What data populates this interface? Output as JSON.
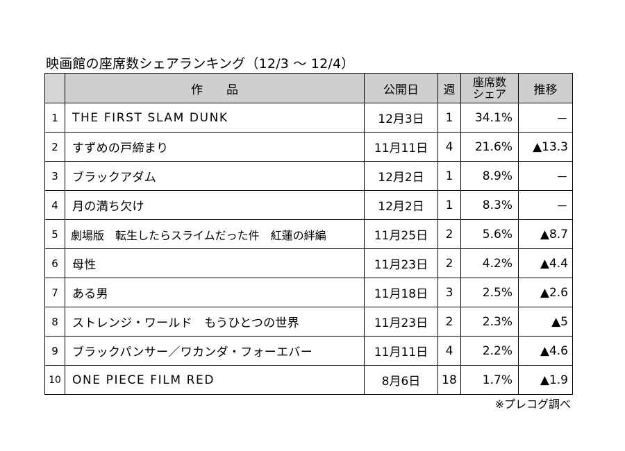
{
  "title": "映画館の座席数シェアランキング（12/3 ～ 12/4）",
  "headers": {
    "title": "作　　品",
    "release": "公開日",
    "week": "週",
    "share_line1": "座席数",
    "share_line2": "シェア",
    "trend": "推移"
  },
  "rows": [
    {
      "rank": "1",
      "title": "THE FIRST SLAM DUNK",
      "release": "12月3日",
      "week": "1",
      "share": "34.1%",
      "trend": "－"
    },
    {
      "rank": "2",
      "title": "すずめの戸締まり",
      "release": "11月11日",
      "week": "4",
      "share": "21.6%",
      "trend": "▲13.3"
    },
    {
      "rank": "3",
      "title": "ブラックアダム",
      "release": "12月2日",
      "week": "1",
      "share": "8.9%",
      "trend": "－"
    },
    {
      "rank": "4",
      "title": "月の満ち欠け",
      "release": "12月2日",
      "week": "1",
      "share": "8.3%",
      "trend": "－"
    },
    {
      "rank": "5",
      "title": "劇場版　転生したらスライムだった件　紅蓮の絆編",
      "release": "11月25日",
      "week": "2",
      "share": "5.6%",
      "trend": "▲8.7"
    },
    {
      "rank": "6",
      "title": "母性",
      "release": "11月23日",
      "week": "2",
      "share": "4.2%",
      "trend": "▲4.4"
    },
    {
      "rank": "7",
      "title": "ある男",
      "release": "11月18日",
      "week": "3",
      "share": "2.5%",
      "trend": "▲2.6"
    },
    {
      "rank": "8",
      "title": "ストレンジ・ワールド　もうひとつの世界",
      "release": "11月23日",
      "week": "2",
      "share": "2.3%",
      "trend": "▲5"
    },
    {
      "rank": "9",
      "title": "ブラックパンサー／ワカンダ・フォーエバー",
      "release": "11月11日",
      "week": "4",
      "share": "2.2%",
      "trend": "▲4.6"
    },
    {
      "rank": "10",
      "title": "ONE PIECE FILM RED",
      "release": "8月6日",
      "week": "18",
      "share": "1.7%",
      "trend": "▲1.9"
    }
  ],
  "note": "※プレコグ調べ"
}
